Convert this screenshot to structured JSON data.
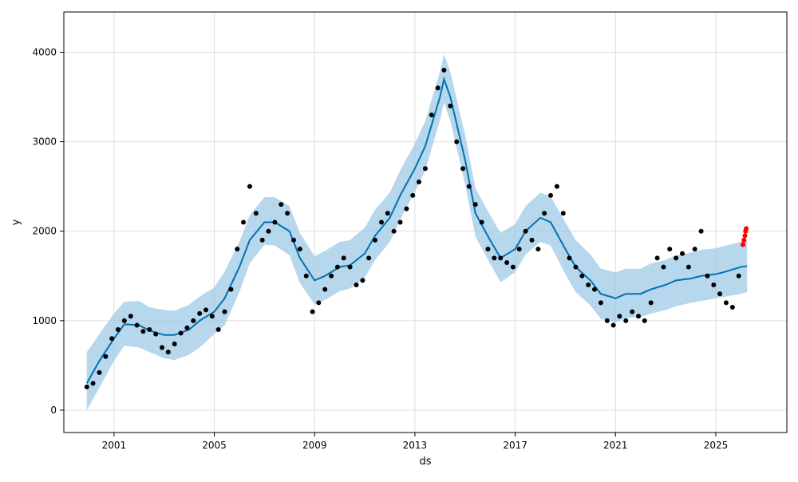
{
  "chart_data": {
    "type": "line",
    "title": "",
    "xlabel": "ds",
    "ylabel": "y",
    "x_is_date": true,
    "xlim": [
      "1999-01-01",
      "2027-11-01"
    ],
    "ylim": [
      -250,
      4450
    ],
    "grid": true,
    "x_ticks": [
      {
        "value": "2001-01-01",
        "label": "2001"
      },
      {
        "value": "2005-01-01",
        "label": "2005"
      },
      {
        "value": "2009-01-01",
        "label": "2009"
      },
      {
        "value": "2013-01-01",
        "label": "2013"
      },
      {
        "value": "2017-01-01",
        "label": "2017"
      },
      {
        "value": "2021-01-01",
        "label": "2021"
      },
      {
        "value": "2025-01-01",
        "label": "2025"
      }
    ],
    "y_ticks": [
      0,
      1000,
      2000,
      3000,
      4000
    ],
    "colors": {
      "forecast_line": "#0072B2",
      "uncertainty_band": "#9ec9e6",
      "observed_points": "#000000",
      "recent_points": "#ff0000",
      "grid": "#dddddd"
    },
    "series": [
      {
        "role": "forecast",
        "x": [
          "1999-12-01",
          "2000-06-01",
          "2001-01-01",
          "2001-06-01",
          "2002-01-01",
          "2002-06-01",
          "2003-01-01",
          "2003-06-01",
          "2004-01-01",
          "2004-06-01",
          "2005-01-01",
          "2005-06-01",
          "2006-01-01",
          "2006-06-01",
          "2007-01-01",
          "2007-06-01",
          "2008-01-01",
          "2008-06-01",
          "2009-01-01",
          "2009-06-01",
          "2010-01-01",
          "2010-06-01",
          "2011-01-01",
          "2011-06-01",
          "2012-01-01",
          "2012-06-01",
          "2013-01-01",
          "2013-06-01",
          "2014-01-01",
          "2014-03-01",
          "2014-06-01",
          "2015-01-01",
          "2015-06-01",
          "2016-01-01",
          "2016-06-01",
          "2017-01-01",
          "2017-06-01",
          "2018-01-01",
          "2018-06-01",
          "2019-01-01",
          "2019-06-01",
          "2020-01-01",
          "2020-06-01",
          "2021-01-01",
          "2021-06-01",
          "2022-01-01",
          "2022-06-01",
          "2023-01-01",
          "2023-06-01",
          "2024-01-01",
          "2024-06-01",
          "2025-01-01",
          "2025-06-01",
          "2026-01-01",
          "2026-04-01"
        ],
        "y": [
          300,
          550,
          800,
          960,
          950,
          890,
          840,
          840,
          900,
          1000,
          1100,
          1250,
          1600,
          1900,
          2100,
          2100,
          2000,
          1700,
          1450,
          1500,
          1600,
          1620,
          1750,
          1950,
          2150,
          2400,
          2700,
          2950,
          3500,
          3700,
          3500,
          2800,
          2200,
          1900,
          1700,
          1800,
          2000,
          2150,
          2100,
          1800,
          1600,
          1450,
          1300,
          1250,
          1300,
          1300,
          1350,
          1400,
          1450,
          1470,
          1500,
          1520,
          1550,
          1600,
          1610
        ]
      },
      {
        "role": "band",
        "x": [
          "1999-12-01",
          "2000-06-01",
          "2001-01-01",
          "2001-06-01",
          "2002-01-01",
          "2002-06-01",
          "2003-01-01",
          "2003-06-01",
          "2004-01-01",
          "2004-06-01",
          "2005-01-01",
          "2005-06-01",
          "2006-01-01",
          "2006-06-01",
          "2007-01-01",
          "2007-06-01",
          "2008-01-01",
          "2008-06-01",
          "2009-01-01",
          "2009-06-01",
          "2010-01-01",
          "2010-06-01",
          "2011-01-01",
          "2011-06-01",
          "2012-01-01",
          "2012-06-01",
          "2013-01-01",
          "2013-06-01",
          "2014-01-01",
          "2014-03-01",
          "2014-06-01",
          "2015-01-01",
          "2015-06-01",
          "2016-01-01",
          "2016-06-01",
          "2017-01-01",
          "2017-06-01",
          "2018-01-01",
          "2018-06-01",
          "2019-01-01",
          "2019-06-01",
          "2020-01-01",
          "2020-06-01",
          "2021-01-01",
          "2021-06-01",
          "2022-01-01",
          "2022-06-01",
          "2023-01-01",
          "2023-06-01",
          "2024-01-01",
          "2024-06-01",
          "2025-01-01",
          "2025-06-01",
          "2026-01-01",
          "2026-04-01"
        ],
        "lower": [
          0,
          250,
          550,
          720,
          700,
          650,
          580,
          560,
          620,
          700,
          850,
          950,
          1320,
          1640,
          1850,
          1840,
          1730,
          1420,
          1180,
          1230,
          1330,
          1360,
          1480,
          1680,
          1880,
          2130,
          2440,
          2680,
          3240,
          3440,
          3230,
          2530,
          1940,
          1640,
          1430,
          1540,
          1740,
          1880,
          1840,
          1520,
          1320,
          1170,
          1020,
          980,
          1030,
          1040,
          1080,
          1120,
          1160,
          1200,
          1220,
          1250,
          1270,
          1300,
          1320
        ],
        "upper": [
          650,
          850,
          1080,
          1210,
          1220,
          1150,
          1120,
          1110,
          1180,
          1270,
          1370,
          1550,
          1880,
          2180,
          2380,
          2380,
          2280,
          1980,
          1720,
          1780,
          1880,
          1900,
          2040,
          2240,
          2430,
          2680,
          2980,
          3230,
          3780,
          3980,
          3780,
          3080,
          2480,
          2180,
          1980,
          2080,
          2280,
          2430,
          2390,
          2100,
          1900,
          1740,
          1580,
          1540,
          1580,
          1580,
          1640,
          1680,
          1730,
          1760,
          1790,
          1810,
          1840,
          1880,
          1900
        ]
      },
      {
        "role": "observed",
        "x": [
          "1999-12-01",
          "2000-03-01",
          "2000-06-01",
          "2000-09-01",
          "2000-12-01",
          "2001-03-01",
          "2001-06-01",
          "2001-09-01",
          "2001-12-01",
          "2002-03-01",
          "2002-06-01",
          "2002-09-01",
          "2002-12-01",
          "2003-03-01",
          "2003-06-01",
          "2003-09-01",
          "2003-12-01",
          "2004-03-01",
          "2004-06-01",
          "2004-09-01",
          "2004-12-01",
          "2005-03-01",
          "2005-06-01",
          "2005-09-01",
          "2005-12-01",
          "2006-03-01",
          "2006-06-01",
          "2006-09-01",
          "2006-12-01",
          "2007-03-01",
          "2007-06-01",
          "2007-09-01",
          "2007-12-01",
          "2008-03-01",
          "2008-06-01",
          "2008-09-01",
          "2008-12-01",
          "2009-03-01",
          "2009-06-01",
          "2009-09-01",
          "2009-12-01",
          "2010-03-01",
          "2010-06-01",
          "2010-09-01",
          "2010-12-01",
          "2011-03-01",
          "2011-06-01",
          "2011-09-01",
          "2011-12-01",
          "2012-03-01",
          "2012-06-01",
          "2012-09-01",
          "2012-12-01",
          "2013-03-01",
          "2013-06-01",
          "2013-09-01",
          "2013-12-01",
          "2014-03-01",
          "2014-06-01",
          "2014-09-01",
          "2014-12-01",
          "2015-03-01",
          "2015-06-01",
          "2015-09-01",
          "2015-12-01",
          "2016-03-01",
          "2016-06-01",
          "2016-09-01",
          "2016-12-01",
          "2017-03-01",
          "2017-06-01",
          "2017-09-01",
          "2017-12-01",
          "2018-03-01",
          "2018-06-01",
          "2018-09-01",
          "2018-12-01",
          "2019-03-01",
          "2019-06-01",
          "2019-09-01",
          "2019-12-01",
          "2020-03-01",
          "2020-06-01",
          "2020-09-01",
          "2020-12-01",
          "2021-03-01",
          "2021-06-01",
          "2021-09-01",
          "2021-12-01",
          "2022-03-01",
          "2022-06-01",
          "2022-09-01",
          "2022-12-01",
          "2023-03-01",
          "2023-06-01",
          "2023-09-01",
          "2023-12-01",
          "2024-03-01",
          "2024-06-01",
          "2024-09-01",
          "2024-12-01",
          "2025-03-01",
          "2025-06-01",
          "2025-09-01",
          "2025-12-01"
        ],
        "y": [
          260,
          300,
          420,
          600,
          800,
          900,
          1000,
          1050,
          950,
          880,
          900,
          850,
          700,
          650,
          740,
          860,
          920,
          1000,
          1080,
          1120,
          1050,
          900,
          1100,
          1350,
          1800,
          2100,
          2500,
          2200,
          1900,
          2000,
          2100,
          2300,
          2200,
          1900,
          1800,
          1500,
          1100,
          1200,
          1350,
          1500,
          1600,
          1700,
          1600,
          1400,
          1450,
          1700,
          1900,
          2100,
          2200,
          2000,
          2100,
          2250,
          2400,
          2550,
          2700,
          3300,
          3600,
          3800,
          3400,
          3000,
          2700,
          2500,
          2300,
          2100,
          1800,
          1700,
          1700,
          1650,
          1600,
          1800,
          2000,
          1900,
          1800,
          2200,
          2400,
          2500,
          2200,
          1700,
          1600,
          1500,
          1400,
          1350,
          1200,
          1000,
          950,
          1050,
          1000,
          1100,
          1050,
          1000,
          1200,
          1700,
          1600,
          1800,
          1700,
          1750,
          1600,
          1800,
          2000,
          1500,
          1400,
          1300,
          1200,
          1150,
          1500
        ]
      },
      {
        "role": "recent",
        "x": [
          "2026-02-01",
          "2026-02-15",
          "2026-03-01",
          "2026-03-10",
          "2026-03-20"
        ],
        "y": [
          1850,
          1900,
          1950,
          2000,
          2030
        ]
      }
    ]
  }
}
